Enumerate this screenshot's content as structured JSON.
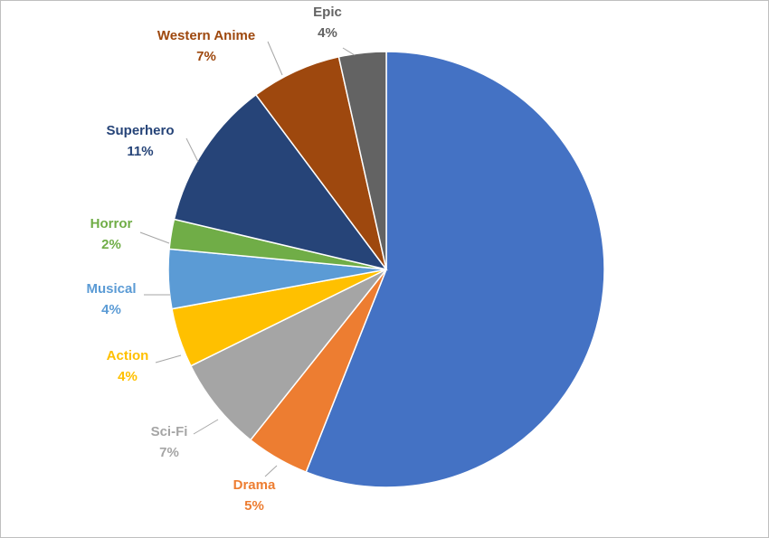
{
  "chart_data": {
    "type": "pie",
    "title": "",
    "start_angle_deg": 0,
    "direction": "clockwise",
    "slices": [
      {
        "label": "",
        "percent": "",
        "value": 56,
        "color": "#4472C4",
        "label_color": "#4472C4"
      },
      {
        "label": "Drama",
        "percent": "5%",
        "value": 4.7,
        "color": "#ED7D31",
        "label_color": "#ED7D31"
      },
      {
        "label": "Sci-Fi",
        "percent": "7%",
        "value": 7,
        "color": "#A5A5A5",
        "label_color": "#A5A5A5"
      },
      {
        "label": "Action",
        "percent": "4%",
        "value": 4.4,
        "color": "#FFC000",
        "label_color": "#FFC000"
      },
      {
        "label": "Musical",
        "percent": "4%",
        "value": 4.4,
        "color": "#5B9BD5",
        "label_color": "#5B9BD5"
      },
      {
        "label": "Horror",
        "percent": "2%",
        "value": 2.2,
        "color": "#70AD47",
        "label_color": "#70AD47"
      },
      {
        "label": "Superhero",
        "percent": "11%",
        "value": 11.1,
        "color": "#264478",
        "label_color": "#264478"
      },
      {
        "label": "Western Anime",
        "percent": "7%",
        "value": 6.7,
        "color": "#9E480E",
        "label_color": "#9E480E"
      },
      {
        "label": "Epic",
        "percent": "4%",
        "value": 3.5,
        "color": "#636363",
        "label_color": "#636363"
      }
    ]
  }
}
